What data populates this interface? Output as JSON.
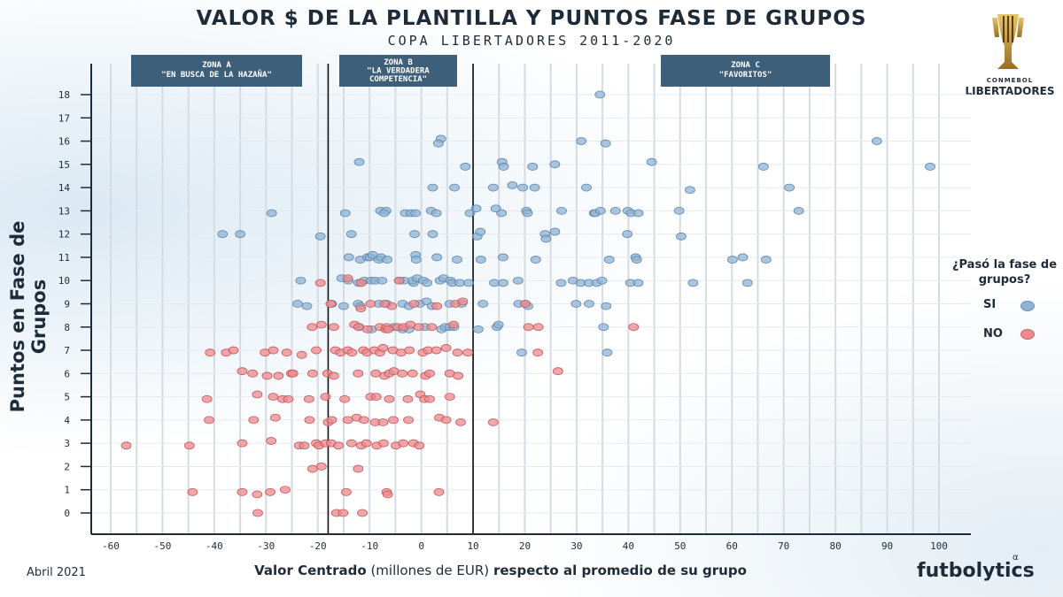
{
  "title": "VALOR $ DE LA PLANTILLA Y PUNTOS FASE DE GRUPOS",
  "subtitle": "COPA LIBERTADORES 2011-2020",
  "date": "Abril 2021",
  "brand": "futbolytics",
  "brand_mark": "α",
  "logo": {
    "top": "CONMEBOL",
    "main": "LIBERTADORES"
  },
  "legend": {
    "title": "¿Pasó la fase de grupos?",
    "yes": "SI",
    "no": "NO"
  },
  "colors": {
    "yes": "#8fb3d4",
    "no": "#ec8a8c",
    "zone_box": "#3e5f7a",
    "text": "#1e2b38"
  },
  "zones": [
    {
      "name": "ZONA A",
      "desc": "\"EN BUSCA DE LA HAZAÑA\""
    },
    {
      "name": "ZONA B",
      "desc": "\"LA VERDADERA COMPETENCIA\""
    },
    {
      "name": "ZONA C",
      "desc": "\"FAVORITOS\""
    }
  ],
  "chart_data": {
    "type": "scatter",
    "title": "VALOR $ DE LA PLANTILLA Y PUNTOS FASE DE GRUPOS",
    "subtitle": "COPA LIBERTADORES 2011-2020",
    "xlabel": "Valor Centrado (millones de EUR) respecto al promedio de su grupo",
    "xlabel_bold_parts": [
      "Valor Centrado",
      "respecto al promedio de su grupo"
    ],
    "xlabel_plain_part": "(millones de EUR)",
    "ylabel": "Puntos en Fase de Grupos",
    "xlim": [
      -62,
      104
    ],
    "ylim": [
      -1,
      19
    ],
    "xticks": [
      -60,
      -50,
      -40,
      -30,
      -20,
      -10,
      0,
      10,
      20,
      30,
      40,
      50,
      60,
      70,
      80,
      90,
      100
    ],
    "yticks": [
      0,
      1,
      2,
      3,
      4,
      5,
      6,
      7,
      8,
      9,
      10,
      11,
      12,
      13,
      14,
      15,
      16,
      17,
      18
    ],
    "grid": true,
    "vlines": [
      -18,
      10
    ],
    "legend_position": "right",
    "series": [
      {
        "name": "SI",
        "points": [
          [
            34.5,
            18
          ],
          [
            3.8,
            16.1
          ],
          [
            3.3,
            15.9
          ],
          [
            30.9,
            16
          ],
          [
            35.6,
            15.9
          ],
          [
            88,
            16
          ],
          [
            -12,
            15.1
          ],
          [
            8.5,
            14.9
          ],
          [
            15.6,
            15.1
          ],
          [
            15.9,
            14.9
          ],
          [
            21.5,
            14.9
          ],
          [
            25.8,
            15
          ],
          [
            44.5,
            15.1
          ],
          [
            66.1,
            14.9
          ],
          [
            98.3,
            14.9
          ],
          [
            2.2,
            14
          ],
          [
            6.4,
            14
          ],
          [
            13.9,
            14
          ],
          [
            17.6,
            14.1
          ],
          [
            19.6,
            14
          ],
          [
            21.9,
            14
          ],
          [
            31.9,
            14
          ],
          [
            51.9,
            13.9
          ],
          [
            71.1,
            14
          ],
          [
            -28.9,
            12.9
          ],
          [
            -14.7,
            12.9
          ],
          [
            -7.9,
            13
          ],
          [
            -6.8,
            13
          ],
          [
            -7.2,
            12.9
          ],
          [
            -3.1,
            12.9
          ],
          [
            -2,
            12.9
          ],
          [
            -1.1,
            12.9
          ],
          [
            1.9,
            13
          ],
          [
            2.9,
            12.9
          ],
          [
            9.4,
            12.9
          ],
          [
            10.6,
            13.1
          ],
          [
            15.5,
            12.9
          ],
          [
            14.4,
            13.1
          ],
          [
            20.3,
            13
          ],
          [
            20.5,
            12.9
          ],
          [
            27.1,
            13
          ],
          [
            33.4,
            12.9
          ],
          [
            33.6,
            12.9
          ],
          [
            34.6,
            13
          ],
          [
            37.5,
            13
          ],
          [
            39.9,
            13
          ],
          [
            40.5,
            12.9
          ],
          [
            41.9,
            12.9
          ],
          [
            49.8,
            13
          ],
          [
            72.9,
            13
          ],
          [
            -38.4,
            12
          ],
          [
            -35,
            12
          ],
          [
            -19.5,
            11.9
          ],
          [
            -13.5,
            12
          ],
          [
            -1.3,
            12
          ],
          [
            2.2,
            12
          ],
          [
            10.8,
            11.9
          ],
          [
            11.4,
            12.1
          ],
          [
            23.9,
            12
          ],
          [
            24.1,
            11.8
          ],
          [
            25.8,
            12.1
          ],
          [
            39.8,
            12
          ],
          [
            50.2,
            11.9
          ],
          [
            -14,
            11
          ],
          [
            -11.8,
            10.9
          ],
          [
            -10.4,
            11
          ],
          [
            -9.9,
            11
          ],
          [
            -9.4,
            11.1
          ],
          [
            -8.2,
            10.9
          ],
          [
            -7.8,
            11
          ],
          [
            -6.6,
            10.9
          ],
          [
            -1.1,
            11.1
          ],
          [
            -1,
            10.9
          ],
          [
            3,
            11
          ],
          [
            6.9,
            10.9
          ],
          [
            11.5,
            10.9
          ],
          [
            15.8,
            11
          ],
          [
            22.1,
            10.9
          ],
          [
            36.3,
            10.9
          ],
          [
            41.4,
            11
          ],
          [
            41.6,
            10.9
          ],
          [
            60.1,
            10.9
          ],
          [
            62.1,
            11
          ],
          [
            66.6,
            10.9
          ],
          [
            -23.3,
            10
          ],
          [
            -15.4,
            10.1
          ],
          [
            -14.1,
            10
          ],
          [
            -12.1,
            9.9
          ],
          [
            -11,
            10
          ],
          [
            -9.7,
            10
          ],
          [
            -8.9,
            10
          ],
          [
            -7.6,
            10
          ],
          [
            -4.2,
            10
          ],
          [
            -3.3,
            10
          ],
          [
            -1.5,
            9.9
          ],
          [
            -1.7,
            10
          ],
          [
            -0.8,
            10.1
          ],
          [
            0.4,
            10
          ],
          [
            1.1,
            9.9
          ],
          [
            3.6,
            10
          ],
          [
            4.3,
            10.1
          ],
          [
            5.6,
            10
          ],
          [
            6,
            9.9
          ],
          [
            7.4,
            9.9
          ],
          [
            9.1,
            9.9
          ],
          [
            14.1,
            9.9
          ],
          [
            15.8,
            9.9
          ],
          [
            18.7,
            10
          ],
          [
            27,
            9.9
          ],
          [
            29.3,
            10
          ],
          [
            30.8,
            9.9
          ],
          [
            32.4,
            9.9
          ],
          [
            33.9,
            9.9
          ],
          [
            34.9,
            10
          ],
          [
            40.4,
            9.9
          ],
          [
            41.9,
            9.9
          ],
          [
            52.5,
            9.9
          ],
          [
            63,
            9.9
          ],
          [
            -23.9,
            9
          ],
          [
            -22.1,
            8.9
          ],
          [
            -17.3,
            9
          ],
          [
            -15,
            8.9
          ],
          [
            -12.2,
            9
          ],
          [
            -11.8,
            8.9
          ],
          [
            -8.2,
            9
          ],
          [
            -6.7,
            9
          ],
          [
            -3.6,
            9
          ],
          [
            -2.4,
            8.9
          ],
          [
            -0.3,
            9
          ],
          [
            1,
            9.1
          ],
          [
            2.1,
            8.9
          ],
          [
            5.5,
            9
          ],
          [
            7.8,
            9
          ],
          [
            11.9,
            9
          ],
          [
            18.8,
            9
          ],
          [
            20.1,
            9
          ],
          [
            20.6,
            8.9
          ],
          [
            29.9,
            9
          ],
          [
            32.4,
            9
          ],
          [
            35.7,
            8.9
          ],
          [
            -12,
            8
          ],
          [
            -9.6,
            7.9
          ],
          [
            -5.3,
            8
          ],
          [
            -3.6,
            7.9
          ],
          [
            -2.4,
            7.9
          ],
          [
            0.7,
            8
          ],
          [
            3.9,
            7.9
          ],
          [
            4.6,
            8
          ],
          [
            5.5,
            8
          ],
          [
            6.3,
            8
          ],
          [
            11,
            7.9
          ],
          [
            14.6,
            8
          ],
          [
            14.9,
            8.1
          ],
          [
            35.2,
            8
          ],
          [
            19.4,
            6.9
          ],
          [
            35.9,
            6.9
          ]
        ]
      },
      {
        "name": "NO",
        "points": [
          [
            -19.5,
            9.9
          ],
          [
            -14.2,
            10.1
          ],
          [
            -11.6,
            9.9
          ],
          [
            -4.3,
            10
          ],
          [
            -17.5,
            9
          ],
          [
            -11.7,
            8.8
          ],
          [
            -9.8,
            9
          ],
          [
            -5.7,
            8.9
          ],
          [
            -7.1,
            9
          ],
          [
            -1.4,
            9
          ],
          [
            3,
            8.9
          ],
          [
            6.6,
            9
          ],
          [
            8,
            9.1
          ],
          [
            20.1,
            9
          ],
          [
            -21.1,
            8
          ],
          [
            -19.3,
            8.1
          ],
          [
            -16.9,
            8
          ],
          [
            -12.9,
            8.1
          ],
          [
            -12.1,
            8
          ],
          [
            -10.4,
            7.9
          ],
          [
            -8,
            8
          ],
          [
            -6.9,
            7.9
          ],
          [
            -6.7,
            8
          ],
          [
            -6.4,
            7.9
          ],
          [
            -4.6,
            8
          ],
          [
            -3.4,
            8
          ],
          [
            -2.1,
            8.1
          ],
          [
            -0.5,
            8
          ],
          [
            2,
            8
          ],
          [
            6.2,
            8.1
          ],
          [
            20.7,
            8
          ],
          [
            22.6,
            8
          ],
          [
            41,
            8
          ],
          [
            -40.8,
            6.9
          ],
          [
            -37.7,
            6.9
          ],
          [
            -36.3,
            7
          ],
          [
            -30.2,
            6.9
          ],
          [
            -28.6,
            7
          ],
          [
            -26,
            6.9
          ],
          [
            -23.1,
            6.8
          ],
          [
            -20.3,
            7
          ],
          [
            -16.6,
            7
          ],
          [
            -15.6,
            6.9
          ],
          [
            -14.2,
            7
          ],
          [
            -13.4,
            6.9
          ],
          [
            -11.2,
            7
          ],
          [
            -10.5,
            6.9
          ],
          [
            -9.1,
            7
          ],
          [
            -8,
            6.9
          ],
          [
            -7.4,
            7.1
          ],
          [
            -5.5,
            7
          ],
          [
            -3.9,
            6.9
          ],
          [
            -2.3,
            7
          ],
          [
            0.3,
            6.9
          ],
          [
            1.3,
            7
          ],
          [
            2.9,
            7
          ],
          [
            4.8,
            7.1
          ],
          [
            7,
            6.9
          ],
          [
            9,
            6.9
          ],
          [
            22.5,
            6.9
          ],
          [
            -34.6,
            6.1
          ],
          [
            -32.6,
            6
          ],
          [
            -29.8,
            5.9
          ],
          [
            -27.6,
            5.9
          ],
          [
            -25.1,
            6
          ],
          [
            -24.8,
            6
          ],
          [
            -21,
            6
          ],
          [
            -18.1,
            6
          ],
          [
            -16.9,
            5.9
          ],
          [
            -12.2,
            6
          ],
          [
            -8.8,
            6
          ],
          [
            -7.1,
            5.9
          ],
          [
            -6.2,
            6
          ],
          [
            -5.3,
            6.1
          ],
          [
            -3.7,
            6
          ],
          [
            -1.7,
            6
          ],
          [
            0.8,
            5.9
          ],
          [
            1.6,
            6
          ],
          [
            5.5,
            6
          ],
          [
            7.1,
            5.9
          ],
          [
            26.4,
            6.1
          ],
          [
            -41.4,
            4.9
          ],
          [
            -31.7,
            5.1
          ],
          [
            -28.6,
            5
          ],
          [
            -26.8,
            4.9
          ],
          [
            -25.7,
            4.9
          ],
          [
            -21.7,
            4.9
          ],
          [
            -18.5,
            5
          ],
          [
            -14.8,
            4.9
          ],
          [
            -9.8,
            5
          ],
          [
            -8.7,
            5
          ],
          [
            -6.2,
            4.9
          ],
          [
            -2.6,
            4.9
          ],
          [
            -0.2,
            5.1
          ],
          [
            0.6,
            4.9
          ],
          [
            1.6,
            4.9
          ],
          [
            5.5,
            5
          ],
          [
            -41,
            4
          ],
          [
            -32.4,
            4
          ],
          [
            -28.2,
            4.1
          ],
          [
            -21.6,
            4
          ],
          [
            -18,
            3.9
          ],
          [
            -17.3,
            4
          ],
          [
            -14.2,
            4
          ],
          [
            -12.5,
            4.1
          ],
          [
            -11.1,
            4
          ],
          [
            -8.9,
            3.9
          ],
          [
            -7.4,
            3.9
          ],
          [
            -5.4,
            4
          ],
          [
            -2.5,
            4
          ],
          [
            3.5,
            4.1
          ],
          [
            4.8,
            4
          ],
          [
            7.6,
            3.9
          ],
          [
            13.9,
            3.9
          ],
          [
            -57,
            2.9
          ],
          [
            -44.8,
            2.9
          ],
          [
            -34.6,
            3
          ],
          [
            -29,
            3.1
          ],
          [
            -23.6,
            2.9
          ],
          [
            -22.6,
            2.9
          ],
          [
            -20.3,
            3
          ],
          [
            -19.8,
            2.9
          ],
          [
            -18.5,
            3
          ],
          [
            -17.4,
            3
          ],
          [
            -16,
            2.9
          ],
          [
            -13.5,
            3
          ],
          [
            -11.6,
            2.9
          ],
          [
            -10.6,
            3
          ],
          [
            -8.6,
            2.9
          ],
          [
            -7.3,
            3
          ],
          [
            -4.9,
            2.9
          ],
          [
            -3.5,
            3
          ],
          [
            -1.5,
            3
          ],
          [
            -0.4,
            2.9
          ],
          [
            -21,
            1.9
          ],
          [
            -19.3,
            2
          ],
          [
            -12.2,
            1.9
          ],
          [
            -44.2,
            0.9
          ],
          [
            -34.6,
            0.9
          ],
          [
            -31.7,
            0.8
          ],
          [
            -29.2,
            0.9
          ],
          [
            -26.3,
            1
          ],
          [
            -14.5,
            0.9
          ],
          [
            -6.7,
            0.9
          ],
          [
            -6.5,
            0.8
          ],
          [
            3.4,
            0.9
          ],
          [
            -31.6,
            0
          ],
          [
            -16.4,
            0
          ],
          [
            -15.1,
            0
          ],
          [
            -11.4,
            0
          ]
        ]
      }
    ]
  }
}
